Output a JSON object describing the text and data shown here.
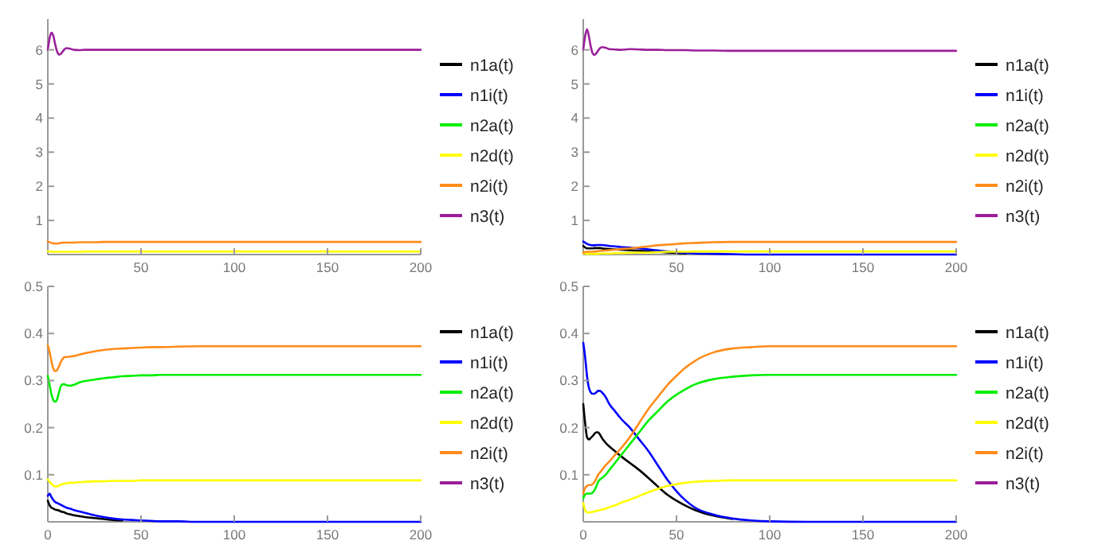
{
  "chart_data": [
    {
      "type": "line",
      "x": [
        0,
        1,
        2,
        3,
        4,
        5,
        6,
        7,
        8,
        9,
        10,
        12,
        14,
        17,
        20,
        25,
        30,
        35,
        40,
        45,
        50,
        55,
        60,
        70,
        80,
        90,
        100,
        120,
        150,
        200
      ],
      "xlim": [
        0,
        200
      ],
      "xticks": [
        50,
        100,
        150,
        200
      ],
      "ylim": [
        0,
        6.9
      ],
      "yticks": [
        1,
        2,
        3,
        4,
        5,
        6
      ],
      "legend": "right",
      "series": [
        {
          "name": "n1a(t)",
          "color": "#000000",
          "values": [
            null,
            null,
            null,
            null,
            null,
            null,
            null,
            null,
            null,
            null,
            null,
            null,
            null,
            null,
            null,
            null,
            null,
            null,
            null,
            null,
            null,
            null,
            null,
            null,
            null,
            null,
            null,
            null,
            null,
            null
          ]
        },
        {
          "name": "n1i(t)",
          "color": "#0000ff",
          "values": [
            null,
            null,
            null,
            null,
            null,
            null,
            null,
            null,
            null,
            null,
            null,
            null,
            null,
            null,
            null,
            null,
            null,
            null,
            null,
            null,
            null,
            null,
            null,
            null,
            null,
            null,
            null,
            null,
            null,
            null
          ]
        },
        {
          "name": "n2a(t)",
          "color": "#00ee00",
          "values": [
            null,
            null,
            null,
            null,
            null,
            null,
            null,
            null,
            null,
            null,
            null,
            null,
            null,
            null,
            null,
            null,
            null,
            null,
            null,
            null,
            null,
            null,
            null,
            null,
            null,
            null,
            null,
            null,
            null,
            null
          ]
        },
        {
          "name": "n2d(t)",
          "color": "#ffff00",
          "values": [
            0.09,
            0.09,
            0.08,
            0.08,
            0.08,
            0.08,
            0.08,
            0.08,
            0.08,
            0.08,
            0.08,
            0.08,
            0.08,
            0.08,
            0.09,
            0.09,
            0.09,
            0.09,
            0.09,
            0.09,
            0.09,
            0.09,
            0.09,
            0.09,
            0.09,
            0.09,
            0.09,
            0.09,
            0.09,
            0.09
          ]
        },
        {
          "name": "n2i(t)",
          "color": "#ff8c1a",
          "values": [
            0.38,
            0.36,
            0.34,
            0.33,
            0.32,
            0.32,
            0.33,
            0.34,
            0.35,
            0.35,
            0.35,
            0.35,
            0.35,
            0.36,
            0.36,
            0.36,
            0.37,
            0.37,
            0.37,
            0.37,
            0.37,
            0.37,
            0.37,
            0.37,
            0.37,
            0.37,
            0.37,
            0.37,
            0.37,
            0.37
          ]
        },
        {
          "name": "n3(t)",
          "color": "#9b1f9b",
          "values": [
            6.0,
            6.35,
            6.5,
            6.4,
            6.15,
            5.95,
            5.86,
            5.88,
            5.95,
            6.02,
            6.05,
            6.03,
            6.0,
            5.99,
            6.0,
            6.0,
            6.0,
            6.0,
            6.0,
            6.0,
            6.0,
            6.0,
            6.0,
            6.0,
            6.0,
            6.0,
            6.0,
            6.0,
            6.0,
            6.0
          ]
        }
      ]
    },
    {
      "type": "line",
      "x": [
        0,
        1,
        2,
        3,
        4,
        5,
        6,
        7,
        8,
        9,
        10,
        12,
        14,
        17,
        20,
        25,
        30,
        35,
        40,
        45,
        50,
        55,
        60,
        70,
        80,
        90,
        100,
        120,
        150,
        200
      ],
      "xlim": [
        0,
        200
      ],
      "xticks": [
        50,
        100,
        150,
        200
      ],
      "ylim": [
        0,
        6.9
      ],
      "yticks": [
        1,
        2,
        3,
        4,
        5,
        6
      ],
      "legend": "right",
      "series": [
        {
          "name": "n1a(t)",
          "color": "#000000",
          "values": [
            0.25,
            0.21,
            0.18,
            0.18,
            0.18,
            0.18,
            0.19,
            0.19,
            0.19,
            0.19,
            0.18,
            0.17,
            0.16,
            0.15,
            0.14,
            0.13,
            0.11,
            0.09,
            0.08,
            0.06,
            0.05,
            0.03,
            null,
            null,
            null,
            null,
            null,
            null,
            null,
            null
          ]
        },
        {
          "name": "n1i(t)",
          "color": "#0000ff",
          "values": [
            0.38,
            0.35,
            0.31,
            0.29,
            0.28,
            0.27,
            0.27,
            0.28,
            0.28,
            0.28,
            0.28,
            0.27,
            0.25,
            0.24,
            0.22,
            0.2,
            0.18,
            0.15,
            0.12,
            0.09,
            0.07,
            0.05,
            0.03,
            0.02,
            0.01,
            0,
            0,
            0,
            0,
            0
          ]
        },
        {
          "name": "n2a(t)",
          "color": "#00ee00",
          "values": [
            null,
            null,
            null,
            null,
            null,
            null,
            null,
            null,
            null,
            null,
            null,
            null,
            null,
            null,
            null,
            null,
            null,
            null,
            null,
            null,
            null,
            null,
            null,
            null,
            null,
            null,
            null,
            null,
            null,
            null
          ]
        },
        {
          "name": "n2d(t)",
          "color": "#ffff00",
          "values": [
            0.04,
            0.03,
            0.02,
            0.02,
            0.02,
            0.02,
            0.02,
            0.02,
            0.02,
            0.03,
            0.03,
            0.03,
            0.03,
            0.04,
            0.04,
            0.05,
            0.06,
            0.06,
            0.07,
            0.08,
            0.08,
            0.08,
            0.09,
            0.09,
            0.09,
            0.09,
            0.09,
            0.09,
            0.09,
            0.09
          ]
        },
        {
          "name": "n2i(t)",
          "color": "#ff8c1a",
          "values": [
            0.06,
            0.07,
            0.08,
            0.08,
            0.08,
            0.08,
            0.09,
            0.09,
            0.1,
            0.11,
            0.11,
            0.12,
            0.13,
            0.14,
            0.16,
            0.18,
            0.21,
            0.24,
            0.27,
            0.29,
            0.31,
            0.33,
            0.34,
            0.36,
            0.37,
            0.37,
            0.37,
            0.37,
            0.37,
            0.37
          ]
        },
        {
          "name": "n3(t)",
          "color": "#9b1f9b",
          "values": [
            6.0,
            6.4,
            6.6,
            6.4,
            6.1,
            5.9,
            5.85,
            5.9,
            5.98,
            6.05,
            6.08,
            6.06,
            6.02,
            6.01,
            6.0,
            6.02,
            6.01,
            6.0,
            6.0,
            5.99,
            5.99,
            5.99,
            5.98,
            5.98,
            5.97,
            5.97,
            5.97,
            5.97,
            5.97,
            5.97
          ]
        }
      ]
    },
    {
      "type": "line",
      "x": [
        0,
        1,
        2,
        3,
        4,
        5,
        6,
        7,
        8,
        9,
        10,
        12,
        14,
        17,
        20,
        25,
        30,
        35,
        40,
        45,
        50,
        55,
        60,
        70,
        80,
        90,
        100,
        120,
        150,
        200
      ],
      "xlim": [
        0,
        200
      ],
      "xticks": [
        0,
        50,
        100,
        150,
        200
      ],
      "ylim": [
        0,
        0.5
      ],
      "yticks": [
        0.1,
        0.2,
        0.3,
        0.4,
        0.5
      ],
      "legend": "right",
      "series": [
        {
          "name": "n1a(t)",
          "color": "#000000",
          "values": [
            0.045,
            0.035,
            0.03,
            0.028,
            0.026,
            0.025,
            0.024,
            0.022,
            0.021,
            0.02,
            0.018,
            0.016,
            0.014,
            0.012,
            0.01,
            0.008,
            0.006,
            0.004,
            0.003,
            null,
            null,
            null,
            null,
            null,
            null,
            null,
            null,
            null,
            null,
            null
          ]
        },
        {
          "name": "n1i(t)",
          "color": "#0000ff",
          "values": [
            0.055,
            0.06,
            0.052,
            0.046,
            0.042,
            0.04,
            0.038,
            0.036,
            0.034,
            0.032,
            0.03,
            0.028,
            0.025,
            0.022,
            0.019,
            0.014,
            0.01,
            0.007,
            0.005,
            0.004,
            0.003,
            0.002,
            0.001,
            0.001,
            0,
            0,
            0,
            0,
            0,
            0
          ]
        },
        {
          "name": "n2a(t)",
          "color": "#00ee00",
          "values": [
            0.31,
            0.29,
            0.27,
            0.258,
            0.255,
            0.26,
            0.275,
            0.288,
            0.292,
            0.292,
            0.29,
            0.289,
            0.291,
            0.296,
            0.299,
            0.302,
            0.305,
            0.307,
            0.309,
            0.31,
            0.311,
            0.311,
            0.312,
            0.312,
            0.312,
            0.312,
            0.312,
            0.312,
            0.312,
            0.312
          ]
        },
        {
          "name": "n2d(t)",
          "color": "#ffff00",
          "values": [
            0.09,
            0.085,
            0.08,
            0.077,
            0.075,
            0.075,
            0.077,
            0.079,
            0.08,
            0.081,
            0.082,
            0.083,
            0.083,
            0.084,
            0.085,
            0.086,
            0.086,
            0.087,
            0.087,
            0.087,
            0.088,
            0.088,
            0.088,
            0.088,
            0.088,
            0.088,
            0.088,
            0.088,
            0.088,
            0.088
          ]
        },
        {
          "name": "n2i(t)",
          "color": "#ff8c1a",
          "values": [
            0.375,
            0.36,
            0.34,
            0.325,
            0.32,
            0.322,
            0.33,
            0.34,
            0.346,
            0.35,
            0.35,
            0.351,
            0.352,
            0.355,
            0.358,
            0.362,
            0.365,
            0.367,
            0.368,
            0.369,
            0.37,
            0.371,
            0.371,
            0.372,
            0.373,
            0.373,
            0.373,
            0.373,
            0.373,
            0.373
          ]
        },
        {
          "name": "n3(t)",
          "color": "#9b1f9b",
          "values": [
            null,
            null,
            null,
            null,
            null,
            null,
            null,
            null,
            null,
            null,
            null,
            null,
            null,
            null,
            null,
            null,
            null,
            null,
            null,
            null,
            null,
            null,
            null,
            null,
            null,
            null,
            null,
            null,
            null,
            null
          ]
        }
      ]
    },
    {
      "type": "line",
      "x": [
        0,
        1,
        2,
        3,
        4,
        5,
        6,
        7,
        8,
        9,
        10,
        12,
        14,
        17,
        20,
        25,
        30,
        35,
        40,
        45,
        50,
        55,
        60,
        70,
        80,
        90,
        100,
        120,
        150,
        200
      ],
      "xlim": [
        0,
        200
      ],
      "xticks": [
        0,
        50,
        100,
        150,
        200
      ],
      "ylim": [
        0,
        0.5
      ],
      "yticks": [
        0.1,
        0.2,
        0.3,
        0.4,
        0.5
      ],
      "legend": "right",
      "series": [
        {
          "name": "n1a(t)",
          "color": "#000000",
          "values": [
            0.25,
            0.21,
            0.18,
            0.175,
            0.178,
            0.182,
            0.187,
            0.19,
            0.19,
            0.185,
            0.178,
            0.168,
            0.16,
            0.15,
            0.14,
            0.125,
            0.11,
            0.093,
            0.075,
            0.058,
            0.045,
            0.034,
            0.025,
            0.013,
            0.006,
            null,
            null,
            null,
            null,
            null
          ]
        },
        {
          "name": "n1i(t)",
          "color": "#0000ff",
          "values": [
            0.38,
            0.35,
            0.31,
            0.285,
            0.275,
            0.272,
            0.272,
            0.275,
            0.278,
            0.278,
            0.275,
            0.265,
            0.25,
            0.235,
            0.22,
            0.2,
            0.175,
            0.15,
            0.12,
            0.09,
            0.065,
            0.045,
            0.03,
            0.015,
            0.007,
            0.003,
            0.001,
            0,
            0,
            0
          ]
        },
        {
          "name": "n2a(t)",
          "color": "#00ee00",
          "values": [
            0.05,
            0.058,
            0.06,
            0.06,
            0.06,
            0.062,
            0.067,
            0.075,
            0.085,
            0.09,
            0.093,
            0.1,
            0.11,
            0.125,
            0.14,
            0.165,
            0.19,
            0.215,
            0.235,
            0.255,
            0.27,
            0.282,
            0.292,
            0.303,
            0.308,
            0.311,
            0.312,
            0.312,
            0.312,
            0.312
          ]
        },
        {
          "name": "n2d(t)",
          "color": "#ffff00",
          "values": [
            0.04,
            0.025,
            0.02,
            0.02,
            0.02,
            0.021,
            0.022,
            0.023,
            0.024,
            0.025,
            0.026,
            0.028,
            0.031,
            0.035,
            0.04,
            0.047,
            0.055,
            0.063,
            0.07,
            0.076,
            0.08,
            0.083,
            0.085,
            0.087,
            0.088,
            0.088,
            0.088,
            0.088,
            0.088,
            0.088
          ]
        },
        {
          "name": "n2i(t)",
          "color": "#ff8c1a",
          "values": [
            0.06,
            0.072,
            0.076,
            0.078,
            0.078,
            0.08,
            0.085,
            0.092,
            0.1,
            0.105,
            0.11,
            0.12,
            0.128,
            0.142,
            0.155,
            0.18,
            0.21,
            0.24,
            0.265,
            0.29,
            0.31,
            0.328,
            0.342,
            0.36,
            0.368,
            0.371,
            0.373,
            0.373,
            0.373,
            0.373
          ]
        },
        {
          "name": "n3(t)",
          "color": "#9b1f9b",
          "values": [
            null,
            null,
            null,
            null,
            null,
            null,
            null,
            null,
            null,
            null,
            null,
            null,
            null,
            null,
            null,
            null,
            null,
            null,
            null,
            null,
            null,
            null,
            null,
            null,
            null,
            null,
            null,
            null,
            null,
            null
          ]
        }
      ]
    }
  ]
}
